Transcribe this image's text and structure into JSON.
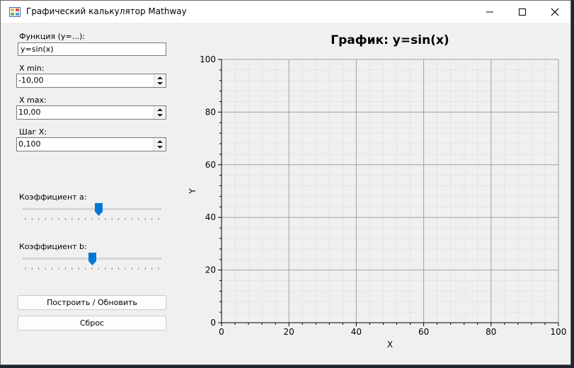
{
  "window": {
    "title": "Графический калькулятор Mathway"
  },
  "controls": {
    "function_label": "Функция (y=...):",
    "function_value": "y=sin(x)",
    "xmin_label": "X min:",
    "xmin_value": "-10,00",
    "xmax_label": "X max:",
    "xmax_value": "10,00",
    "step_label": "Шаг X:",
    "step_value": "0,100",
    "coef_a_label": "Коэффициент a:",
    "coef_a_position": 0.55,
    "coef_b_label": "Коэффициент b:",
    "coef_b_position": 0.5,
    "build_button": "Построить / Обновить",
    "reset_button": "Сброс"
  },
  "chart_data": {
    "type": "line",
    "title": "График: y=sin(x)",
    "xlabel": "X",
    "ylabel": "Y",
    "xlim": [
      0,
      100
    ],
    "ylim": [
      0,
      100
    ],
    "xticks": [
      0,
      20,
      40,
      60,
      80,
      100
    ],
    "yticks": [
      0,
      20,
      40,
      60,
      80,
      100
    ],
    "grid": true,
    "series": []
  },
  "colors": {
    "slider_thumb": "#0078d7",
    "plot_background": "#f0f0f0",
    "grid_major": "#a0a0a0",
    "grid_minor": "#cfcfcf"
  }
}
